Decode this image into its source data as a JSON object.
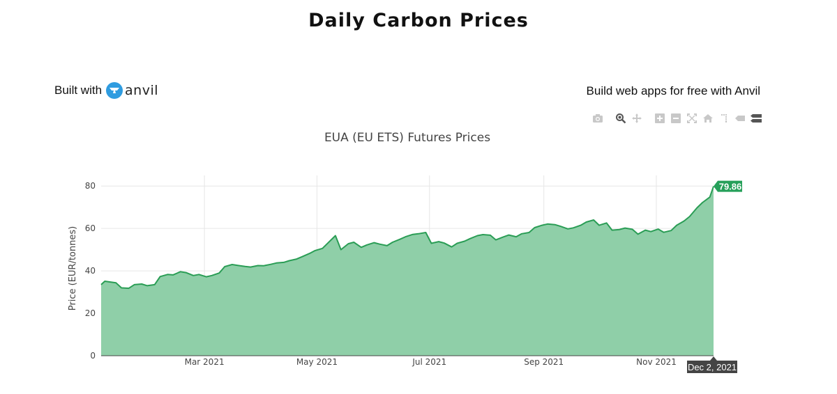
{
  "page": {
    "title": "Daily Carbon Prices",
    "built_with_label": "Built with",
    "brand_name": "anvil",
    "promo_text": "Build web apps for free with Anvil"
  },
  "modebar": {
    "icons": [
      "camera-icon",
      "zoom-icon",
      "pan-icon",
      "zoom-in-icon",
      "zoom-out-icon",
      "autoscale-icon",
      "reset-axes-icon",
      "spike-lines-icon",
      "hover-closest-icon",
      "hover-compare-icon"
    ]
  },
  "colors": {
    "line": "#2a9d55",
    "fill": "#8fcfa8",
    "hover_y_bg": "#26a05a",
    "hover_x_bg": "#444444",
    "grid": "#e6e6e6"
  },
  "chart_data": {
    "type": "area",
    "title": "EUA (EU ETS) Futures Prices",
    "xlabel": "",
    "ylabel": "Price (EUR/tonnes)",
    "xlim": [
      "2021-01-04",
      "2021-12-02"
    ],
    "ylim": [
      0,
      85
    ],
    "yticks": [
      0,
      20,
      40,
      60,
      80
    ],
    "xticks": [
      {
        "date": "2021-03-01",
        "label": "Mar 2021"
      },
      {
        "date": "2021-05-01",
        "label": "May 2021"
      },
      {
        "date": "2021-07-01",
        "label": "Jul 2021"
      },
      {
        "date": "2021-09-01",
        "label": "Sep 2021"
      },
      {
        "date": "2021-11-01",
        "label": "Nov 2021"
      }
    ],
    "grid": true,
    "hover": {
      "x_label": "Dec 2, 2021",
      "y_label": "79.86"
    },
    "series": [
      {
        "x": [
          "2021-01-04",
          "2021-01-06",
          "2021-01-08",
          "2021-01-12",
          "2021-01-15",
          "2021-01-19",
          "2021-01-22",
          "2021-01-26",
          "2021-01-29",
          "2021-02-02",
          "2021-02-05",
          "2021-02-09",
          "2021-02-12",
          "2021-02-16",
          "2021-02-19",
          "2021-02-23",
          "2021-02-26",
          "2021-03-02",
          "2021-03-05",
          "2021-03-09",
          "2021-03-12",
          "2021-03-16",
          "2021-03-19",
          "2021-03-23",
          "2021-03-26",
          "2021-03-30",
          "2021-04-02",
          "2021-04-06",
          "2021-04-09",
          "2021-04-13",
          "2021-04-16",
          "2021-04-20",
          "2021-04-23",
          "2021-04-27",
          "2021-04-30",
          "2021-05-04",
          "2021-05-07",
          "2021-05-11",
          "2021-05-14",
          "2021-05-18",
          "2021-05-21",
          "2021-05-25",
          "2021-05-28",
          "2021-06-01",
          "2021-06-04",
          "2021-06-08",
          "2021-06-11",
          "2021-06-15",
          "2021-06-18",
          "2021-06-22",
          "2021-06-25",
          "2021-06-29",
          "2021-07-02",
          "2021-07-06",
          "2021-07-09",
          "2021-07-13",
          "2021-07-16",
          "2021-07-20",
          "2021-07-23",
          "2021-07-27",
          "2021-07-30",
          "2021-08-03",
          "2021-08-06",
          "2021-08-10",
          "2021-08-13",
          "2021-08-17",
          "2021-08-20",
          "2021-08-24",
          "2021-08-27",
          "2021-08-31",
          "2021-09-03",
          "2021-09-07",
          "2021-09-10",
          "2021-09-14",
          "2021-09-17",
          "2021-09-21",
          "2021-09-24",
          "2021-09-28",
          "2021-10-01",
          "2021-10-05",
          "2021-10-08",
          "2021-10-12",
          "2021-10-15",
          "2021-10-19",
          "2021-10-22",
          "2021-10-26",
          "2021-10-29",
          "2021-11-02",
          "2021-11-05",
          "2021-11-09",
          "2021-11-12",
          "2021-11-16",
          "2021-11-19",
          "2021-11-23",
          "2021-11-26",
          "2021-11-30",
          "2021-12-02"
        ],
        "y": [
          33.5,
          35.1,
          34.9,
          34.4,
          32.0,
          31.8,
          33.5,
          33.8,
          33.0,
          33.5,
          37.3,
          38.3,
          38.1,
          39.6,
          39.2,
          37.8,
          38.3,
          37.2,
          37.8,
          39.0,
          42.0,
          43.0,
          42.6,
          42.1,
          41.8,
          42.5,
          42.4,
          43.1,
          43.7,
          44.0,
          44.8,
          45.6,
          46.7,
          48.2,
          49.6,
          50.6,
          53.2,
          56.6,
          50.0,
          52.8,
          53.5,
          51.1,
          52.2,
          53.3,
          52.6,
          51.9,
          53.5,
          54.9,
          56.1,
          57.2,
          57.5,
          58.1,
          53.0,
          53.8,
          53.1,
          51.3,
          53.0,
          54.0,
          55.2,
          56.6,
          57.1,
          56.8,
          54.6,
          56.0,
          56.9,
          56.1,
          57.5,
          58.1,
          60.4,
          61.5,
          62.1,
          61.8,
          61.0,
          59.8,
          60.3,
          61.5,
          63.0,
          64.0,
          61.5,
          62.6,
          59.2,
          59.5,
          60.2,
          59.6,
          57.3,
          59.2,
          58.5,
          59.7,
          58.2,
          59.0,
          61.5,
          63.5,
          65.6,
          69.7,
          72.2,
          74.8,
          79.86
        ]
      }
    ]
  }
}
